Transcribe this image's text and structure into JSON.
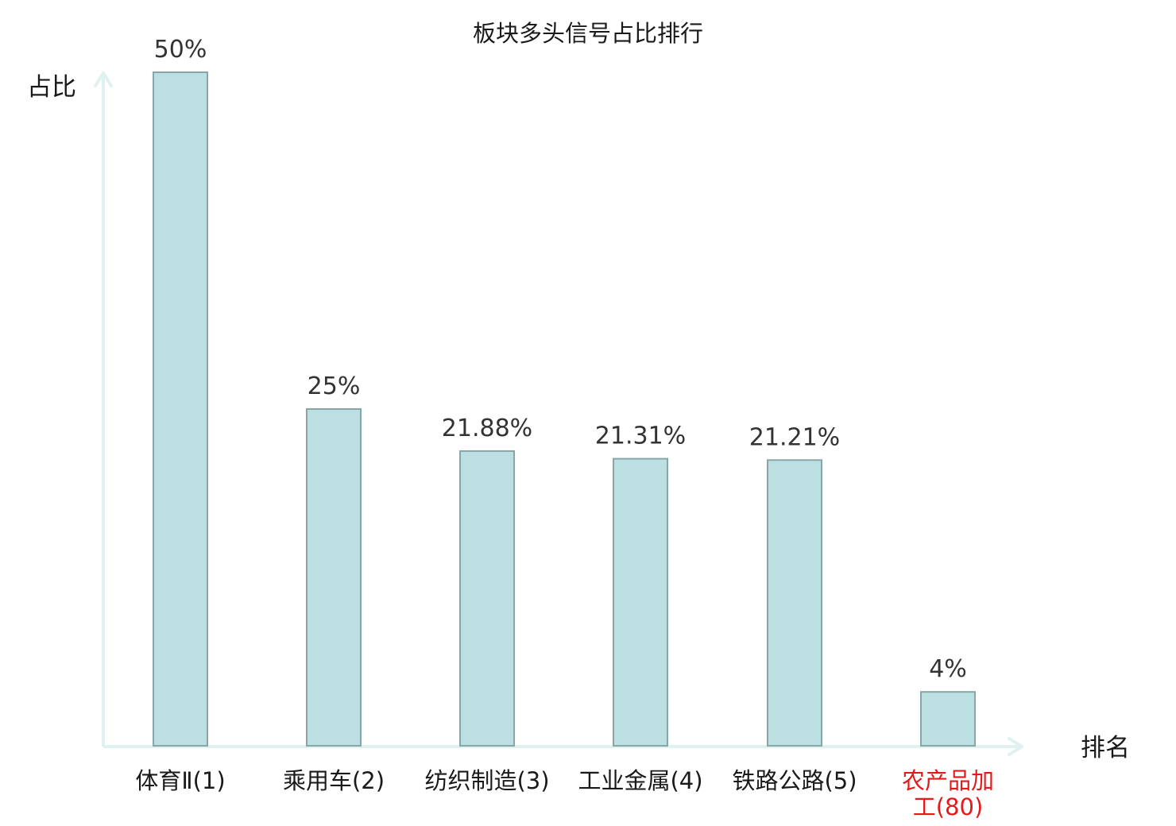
{
  "chart_data": {
    "type": "bar",
    "title": "板块多头信号占比排行",
    "xlabel": "排名",
    "ylabel": "占比",
    "ylim": [
      0,
      50
    ],
    "grid": false,
    "categories": [
      "体育Ⅱ(1)",
      "乘用车(2)",
      "纺织制造(3)",
      "工业金属(4)",
      "铁路公路(5)",
      "农产品加工(80)"
    ],
    "category_lines": [
      [
        "体育Ⅱ(1)"
      ],
      [
        "乘用车(2)"
      ],
      [
        "纺织制造(3)"
      ],
      [
        "工业金属(4)"
      ],
      [
        "铁路公路(5)"
      ],
      [
        "农产品加",
        "工(80)"
      ]
    ],
    "values": [
      50,
      25,
      21.88,
      21.31,
      21.21,
      4
    ],
    "value_labels": [
      "50%",
      "25%",
      "21.88%",
      "21.31%",
      "21.21%",
      "4%"
    ],
    "highlight_index": 5,
    "colors": {
      "bar_fill": "#bce0e2",
      "bar_stroke": "#88a6a8",
      "axis": "#dff2ef",
      "label": "#1a1a1a",
      "value_label": "#333333",
      "highlight_label": "#e31a1a"
    }
  }
}
